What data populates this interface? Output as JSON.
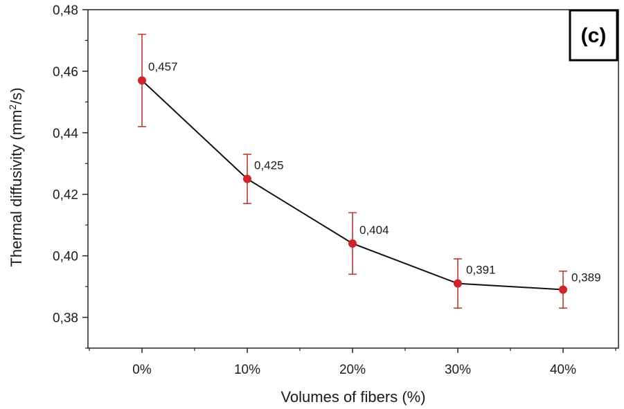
{
  "chart_data": {
    "type": "line",
    "panel_label": "(c)",
    "xlabel": "Volumes of fibers (%)",
    "ylabel_main": "Thermal diffusivity (mm",
    "ylabel_sup": "2",
    "ylabel_end": "/s)",
    "categories": [
      "0%",
      "10%",
      "20%",
      "30%",
      "40%"
    ],
    "values": [
      0.457,
      0.425,
      0.404,
      0.391,
      0.389
    ],
    "value_labels": [
      "0,457",
      "0,425",
      "0,404",
      "0,391",
      "0,389"
    ],
    "error_low": [
      0.442,
      0.417,
      0.394,
      0.383,
      0.383
    ],
    "error_high": [
      0.472,
      0.433,
      0.414,
      0.399,
      0.395
    ],
    "ylim": [
      0.37,
      0.48
    ],
    "yticks": [
      0.38,
      0.4,
      0.42,
      0.44,
      0.46,
      0.48
    ],
    "ytick_labels": [
      "0,38",
      "0,40",
      "0,42",
      "0,44",
      "0,46",
      "0,48"
    ],
    "grid": false,
    "colors": {
      "marker": "#d0232a",
      "error_bar": "#c0392b",
      "line": "#111111",
      "axis": "#222222"
    }
  }
}
